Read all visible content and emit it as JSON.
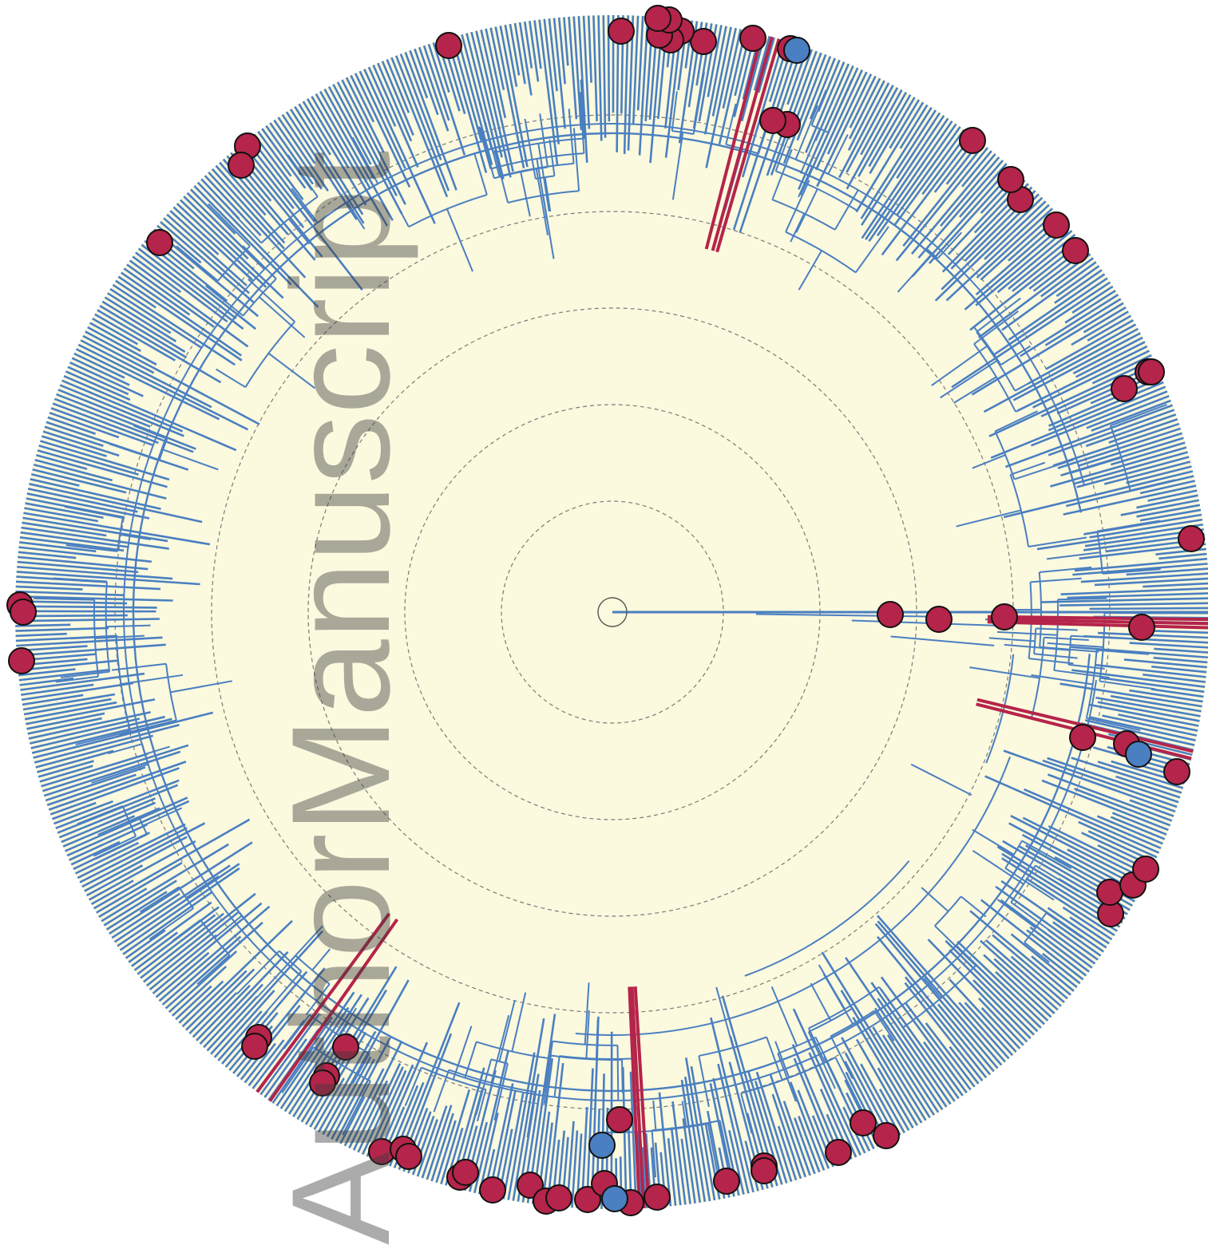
{
  "watermark": {
    "word1": "Author",
    "word2": "Manuscript",
    "color": "#3a3a3a"
  },
  "colors": {
    "background_disc": "#fbf9de",
    "branch_default": "#4a7fc1",
    "branch_highlight": "#b5244a",
    "marker_red": "#b5244a",
    "marker_blue": "#4a7fc1",
    "marker_stroke": "#111111",
    "guide_ring": "#7a7a7a"
  },
  "tree": {
    "layout": "circular",
    "guide_rings": 5,
    "lineage_count": 760,
    "red_marker_count": 96,
    "blue_marker_count": 5
  }
}
